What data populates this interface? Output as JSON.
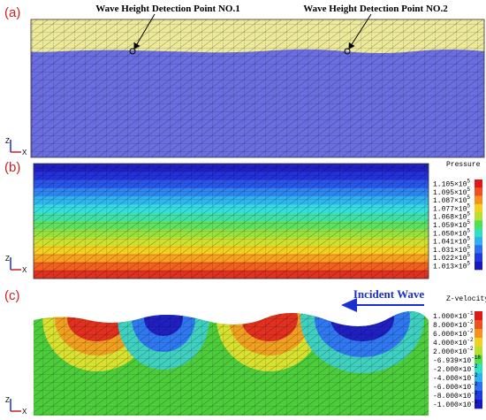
{
  "panels": [
    {
      "label": "(a)",
      "axes": {
        "z": "Z",
        "x": "X"
      },
      "annotations": [
        "Wave Height Detection Point NO.1",
        "Wave Height Detection Point NO.2"
      ]
    },
    {
      "label": "(b)",
      "axes": {
        "z": "Z",
        "x": "X"
      },
      "legend": {
        "title": "Pressure",
        "labels": [
          {
            "mantissa": "1.105×10",
            "exponent": "5"
          },
          {
            "mantissa": "1.095×10",
            "exponent": "5"
          },
          {
            "mantissa": "1.087×10",
            "exponent": "5"
          },
          {
            "mantissa": "1.077×10",
            "exponent": "5"
          },
          {
            "mantissa": "1.068×10",
            "exponent": "5"
          },
          {
            "mantissa": "1.059×10",
            "exponent": "5"
          },
          {
            "mantissa": "1.050×10",
            "exponent": "5"
          },
          {
            "mantissa": "1.041×10",
            "exponent": "5"
          },
          {
            "mantissa": "1.031×10",
            "exponent": "5"
          },
          {
            "mantissa": "1.022×10",
            "exponent": "5"
          },
          {
            "mantissa": "1.013×10",
            "exponent": "5"
          }
        ]
      }
    },
    {
      "label": "(c)",
      "axes": {
        "z": "Z",
        "x": "X"
      },
      "annotation": "Incident Wave",
      "legend": {
        "title": "Z-velocity",
        "labels": [
          {
            "mantissa": "1.000×10",
            "exponent": "-1"
          },
          {
            "mantissa": "8.000×10",
            "exponent": "-2"
          },
          {
            "mantissa": "6.000×10",
            "exponent": "-2"
          },
          {
            "mantissa": "4.000×10",
            "exponent": "-2"
          },
          {
            "mantissa": "2.000×10",
            "exponent": "-2"
          },
          {
            "mantissa": "-6.939×10",
            "exponent": "-18"
          },
          {
            "mantissa": "-2.000×10",
            "exponent": "-2"
          },
          {
            "mantissa": "-4.000×10",
            "exponent": "-2"
          },
          {
            "mantissa": "-6.000×10",
            "exponent": "-2"
          },
          {
            "mantissa": "-8.000×10",
            "exponent": "-2"
          },
          {
            "mantissa": "-1.000×10",
            "exponent": "-1"
          }
        ]
      }
    }
  ]
}
